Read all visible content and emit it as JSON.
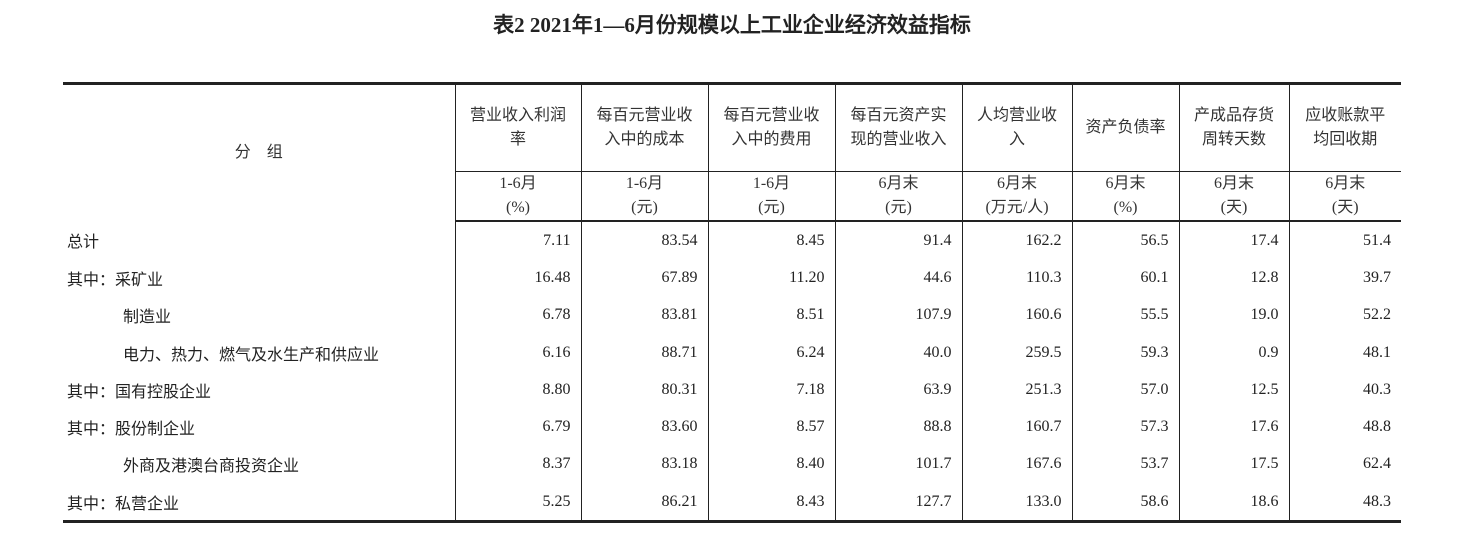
{
  "header": {
    "title": "表2  2021年1—6月份规模以上工业企业经济效益指标"
  },
  "table": {
    "group_label": "分　组",
    "columns": [
      {
        "name": "营业收入利润率",
        "period": "1-6月",
        "unit": "(%)"
      },
      {
        "name": "每百元营业收入中的成本",
        "period": "1-6月",
        "unit": "(元)"
      },
      {
        "name": "每百元营业收入中的费用",
        "period": "1-6月",
        "unit": "(元)"
      },
      {
        "name": "每百元资产实现的营业收入",
        "period": "6月末",
        "unit": "(元)"
      },
      {
        "name": "人均营业收入",
        "period": "6月末",
        "unit": "(万元/人)"
      },
      {
        "name": "资产负债率",
        "period": "6月末",
        "unit": "(%)"
      },
      {
        "name": "产成品存货周转天数",
        "period": "6月末",
        "unit": "(天)"
      },
      {
        "name": "应收账款平均回收期",
        "period": "6月末",
        "unit": "(天)"
      }
    ],
    "rows": [
      {
        "label": "总计",
        "values": [
          "7.11",
          "83.54",
          "8.45",
          "91.4",
          "162.2",
          "56.5",
          "17.4",
          "51.4"
        ]
      },
      {
        "label": "其中：采矿业",
        "values": [
          "16.48",
          "67.89",
          "11.20",
          "44.6",
          "110.3",
          "60.1",
          "12.8",
          "39.7"
        ]
      },
      {
        "label": "制造业",
        "values": [
          "6.78",
          "83.81",
          "8.51",
          "107.9",
          "160.6",
          "55.5",
          "19.0",
          "52.2"
        ]
      },
      {
        "label": "电力、热力、燃气及水生产和供应业",
        "values": [
          "6.16",
          "88.71",
          "6.24",
          "40.0",
          "259.5",
          "59.3",
          "0.9",
          "48.1"
        ]
      },
      {
        "label": "其中：国有控股企业",
        "values": [
          "8.80",
          "80.31",
          "7.18",
          "63.9",
          "251.3",
          "57.0",
          "12.5",
          "40.3"
        ]
      },
      {
        "label": "其中：股份制企业",
        "values": [
          "6.79",
          "83.60",
          "8.57",
          "88.8",
          "160.7",
          "57.3",
          "17.6",
          "48.8"
        ]
      },
      {
        "label": "外商及港澳台商投资企业",
        "values": [
          "8.37",
          "83.18",
          "8.40",
          "101.7",
          "167.6",
          "53.7",
          "17.5",
          "62.4"
        ]
      },
      {
        "label": "其中：私营企业",
        "values": [
          "5.25",
          "86.21",
          "8.43",
          "127.7",
          "133.0",
          "58.6",
          "18.6",
          "48.3"
        ]
      }
    ]
  }
}
